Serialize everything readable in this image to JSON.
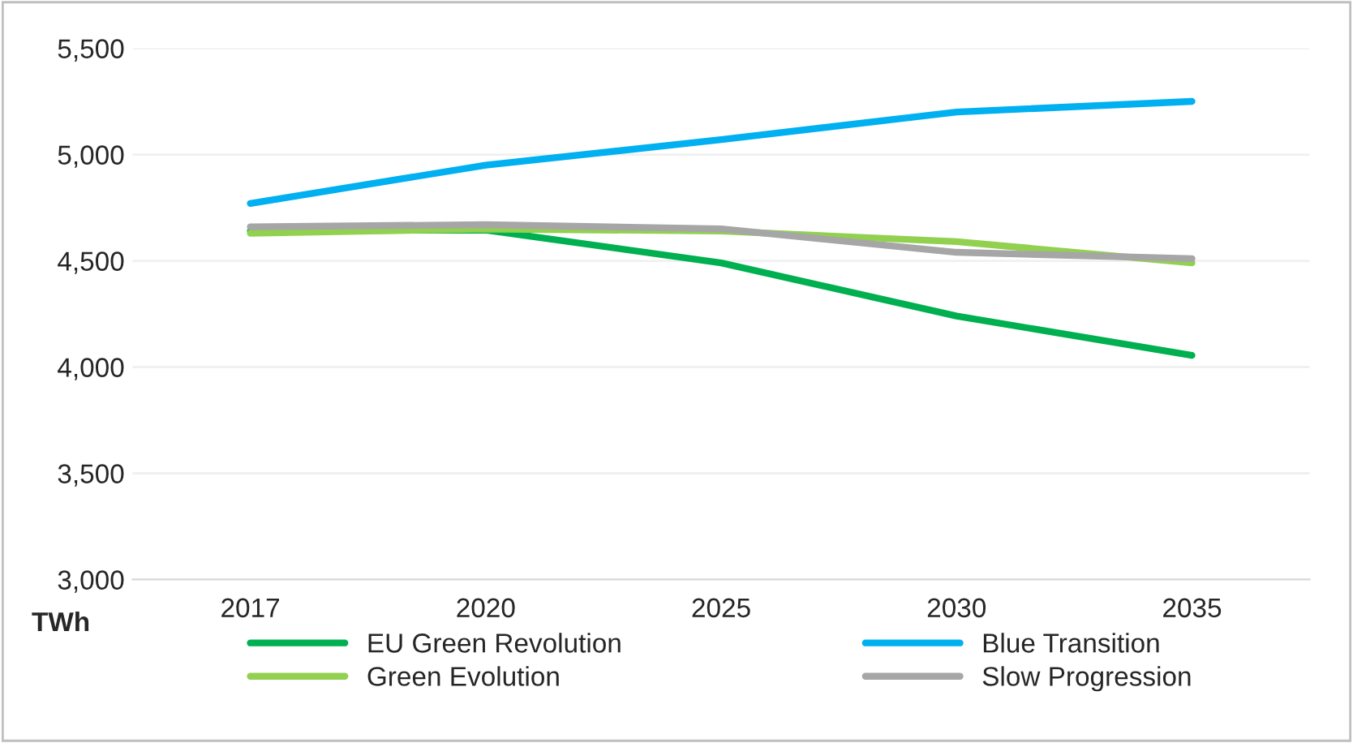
{
  "chart_data": {
    "type": "line",
    "ylabel": "TWh",
    "categories": [
      "2017",
      "2020",
      "2025",
      "2030",
      "2035"
    ],
    "series": [
      {
        "name": "EU Green Revolution",
        "color": "#00b050",
        "values": [
          4640,
          4645,
          4490,
          4240,
          4055
        ]
      },
      {
        "name": "Green Evolution",
        "color": "#92d050",
        "values": [
          4630,
          4650,
          4640,
          4590,
          4490
        ]
      },
      {
        "name": "Blue Transition",
        "color": "#00b0f0",
        "values": [
          4770,
          4950,
          5070,
          5200,
          5250
        ]
      },
      {
        "name": "Slow Progression",
        "color": "#a6a6a6",
        "values": [
          4660,
          4670,
          4650,
          4540,
          4510
        ]
      }
    ],
    "ylim": [
      3000,
      5500
    ],
    "yticks": [
      {
        "value": 3000,
        "label": "3,000"
      },
      {
        "value": 3500,
        "label": "3,500"
      },
      {
        "value": 4000,
        "label": "4,000"
      },
      {
        "value": 4500,
        "label": "4,500"
      },
      {
        "value": 5000,
        "label": "5,000"
      },
      {
        "value": 5500,
        "label": "5,500"
      }
    ],
    "grid": "y",
    "legend": "bottom",
    "marker": "none",
    "line_style": "solid"
  }
}
